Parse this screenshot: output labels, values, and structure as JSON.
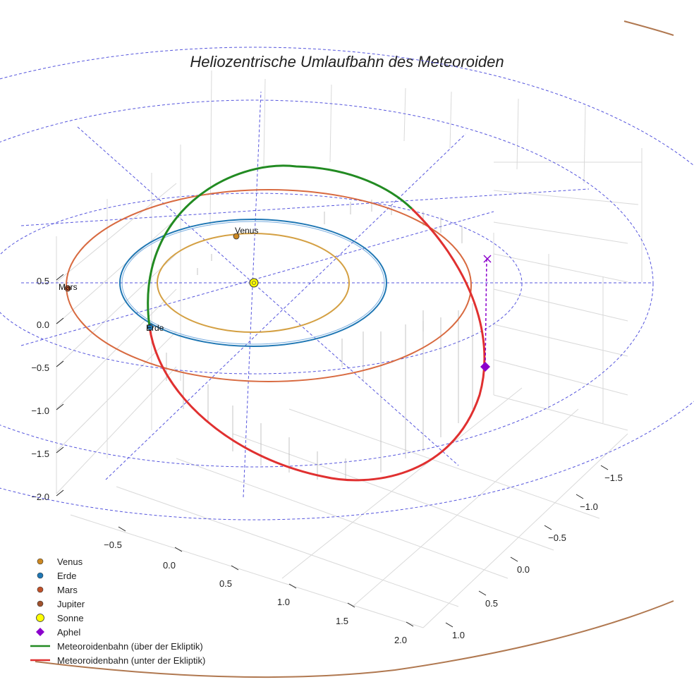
{
  "chart_data": {
    "type": "line",
    "title": "Heliozentrische Umlaufbahn des Meteoroiden",
    "xlabel": "",
    "ylabel": "",
    "zlabel": "",
    "grid": true,
    "x_ticks": [
      "−0.5",
      "0.0",
      "0.5",
      "1.0",
      "1.5",
      "2.0"
    ],
    "y_ticks": [
      "1.0",
      "0.5",
      "0.0",
      "−0.5",
      "−1.0",
      "−1.5"
    ],
    "z_ticks": [
      "0.5",
      "0.0",
      "−0.5",
      "−1.0",
      "−1.5",
      "−2.0"
    ],
    "series": [
      {
        "name": "Venus",
        "kind": "point",
        "color": "#cc8822",
        "label": "Venus",
        "x": 0.0,
        "y": 0.72,
        "z": 0.0
      },
      {
        "name": "Erde",
        "kind": "point",
        "color": "#1f77b4",
        "label": "Erde",
        "x": -0.3,
        "y": -0.95,
        "z": 0.0
      },
      {
        "name": "Mars",
        "kind": "point",
        "color": "#c0522a",
        "label": "Mars",
        "x": -1.52,
        "y": 0.1,
        "z": 0.0
      },
      {
        "name": "Jupiter",
        "kind": "point",
        "color": "#a0522d"
      },
      {
        "name": "Sonne",
        "kind": "point",
        "color": "#ffff00",
        "x": 0.0,
        "y": 0.0,
        "z": 0.0
      },
      {
        "name": "Aphel",
        "kind": "point",
        "color": "#8b00cc",
        "x": 1.2,
        "y": -0.55,
        "z": -0.5
      },
      {
        "name": "Meteoroidenbahn (über der Ekliptik)",
        "kind": "line",
        "color": "#228b22"
      },
      {
        "name": "Meteoroidenbahn (unter der Ekliptik)",
        "kind": "line",
        "color": "#e03030"
      }
    ],
    "orbits": [
      {
        "name": "Venus",
        "color": "#d4a043",
        "a_au": 0.72
      },
      {
        "name": "Erde",
        "color": "#1f77b4",
        "a_au": 1.0
      },
      {
        "name": "Mars",
        "color": "#d86a40",
        "a_au": 1.52
      },
      {
        "name": "Jupiter",
        "color": "#b07850",
        "a_au": 5.2
      }
    ],
    "ecliptic_reference_color": "#5555dd"
  }
}
